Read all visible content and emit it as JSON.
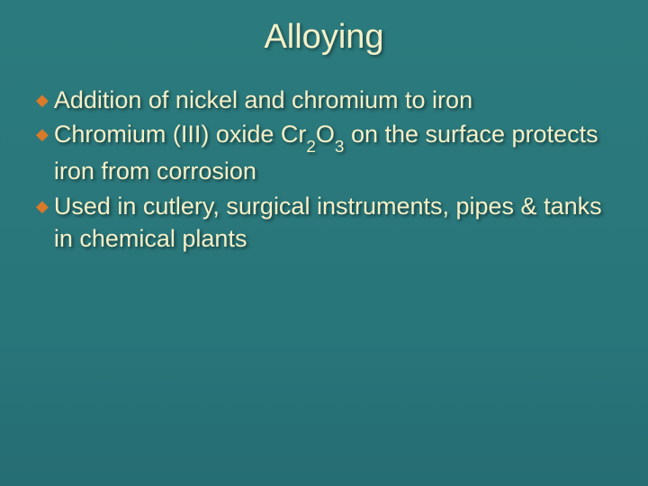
{
  "slide": {
    "title": "Alloying",
    "title_color": "#f4f0c8",
    "title_fontsize": 38,
    "background_gradient": [
      "#2b7a7d",
      "#256d72"
    ],
    "bullet_color": "#d87a2a",
    "text_color": "#f4f0c8",
    "text_fontsize": 27,
    "bullets": [
      {
        "parts": [
          {
            "t": "Addition of nickel and chromium to iron"
          }
        ]
      },
      {
        "parts": [
          {
            "t": "Chromium (III) oxide Cr"
          },
          {
            "t": "2",
            "sub": true
          },
          {
            "t": "O"
          },
          {
            "t": "3",
            "sub": true
          },
          {
            "t": " on the surface protects iron from corrosion"
          }
        ]
      },
      {
        "parts": [
          {
            "t": "Used in cutlery, surgical instruments, pipes & tanks in chemical plants"
          }
        ]
      }
    ]
  }
}
